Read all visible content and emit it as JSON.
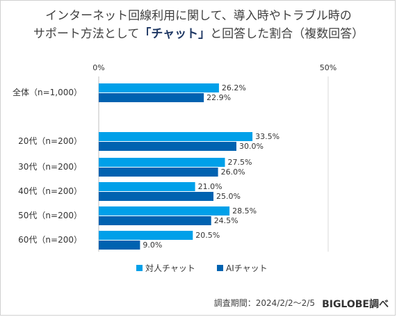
{
  "title": {
    "line1": "インターネット回線利用に関して、導入時やトラブル時の",
    "line2_pre": "サポート方法として",
    "line2_em": "「チャット」",
    "line2_post": "と回答した割合（複数回答）"
  },
  "footer": {
    "source": "調査期間：2024/2/2〜2/5",
    "brand": "BIGLOBE調べ"
  },
  "chart_data": {
    "type": "bar",
    "orientation": "horizontal",
    "categories": [
      "全体（n=1,000）",
      "20代（n=200）",
      "30代（n=200）",
      "40代（n=200）",
      "50代（n=200）",
      "60代（n=200）"
    ],
    "series": [
      {
        "name": "対人チャット",
        "color": "#00a0e9",
        "values": [
          26.2,
          33.5,
          27.5,
          21.0,
          28.5,
          20.5
        ]
      },
      {
        "name": "AIチャット",
        "color": "#0062b0",
        "values": [
          22.9,
          30.0,
          26.0,
          25.0,
          24.5,
          9.0
        ]
      }
    ],
    "value_labels": [
      [
        "26.2%",
        "33.5%",
        "27.5%",
        "21.0%",
        "28.5%",
        "20.5%"
      ],
      [
        "22.9%",
        "30.0%",
        "26.0%",
        "25.0%",
        "24.5%",
        "9.0%"
      ]
    ],
    "x_ticks": [
      "0%",
      "50%"
    ],
    "xlim": [
      0,
      50
    ],
    "legend_position": "bottom",
    "grid": false
  }
}
